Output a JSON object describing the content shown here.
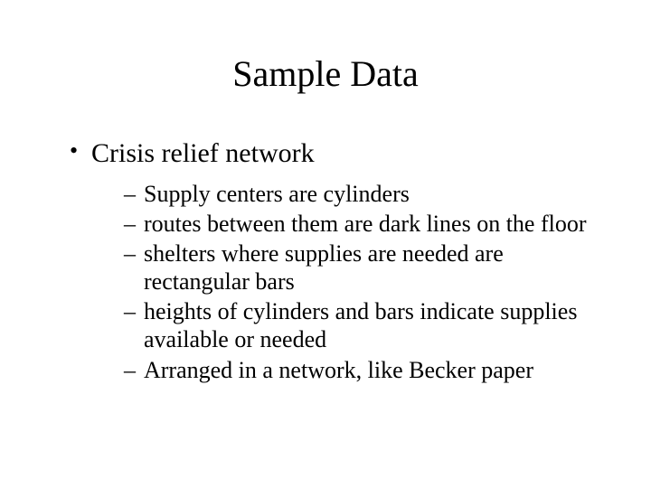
{
  "title": "Sample Data",
  "bullets": {
    "item0": {
      "label": "Crisis relief network",
      "sub": {
        "s0": "Supply centers are cylinders",
        "s1": "routes between them are dark lines on the floor",
        "s2": "shelters where supplies are needed are rectangular bars",
        "s3": "heights of cylinders and bars indicate supplies available or needed",
        "s4": "Arranged in a network, like Becker paper"
      }
    }
  },
  "style": {
    "background_color": "#ffffff",
    "text_color": "#000000",
    "title_fontsize": 40,
    "l1_fontsize": 30,
    "l2_fontsize": 26,
    "font_family": "Times New Roman"
  }
}
